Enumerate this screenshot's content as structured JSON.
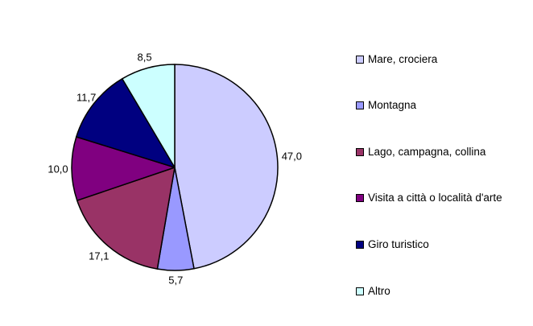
{
  "chart_data": {
    "type": "pie",
    "title": "",
    "categories": [
      "Mare, crociera",
      "Montagna",
      "Lago, campagna, collina",
      "Visita a città o località d'arte",
      "Giro turistico",
      "Altro"
    ],
    "values": [
      47.0,
      5.7,
      17.1,
      10.0,
      11.7,
      8.5
    ],
    "value_labels": [
      "47,0",
      "5,7",
      "17,1",
      "10,0",
      "11,7",
      "8,5"
    ],
    "colors": [
      "#ccccff",
      "#9999ff",
      "#993366",
      "#800080",
      "#000080",
      "#ccffff"
    ],
    "start_angle_deg": 0,
    "direction": "clockwise",
    "legend_position": "right"
  },
  "legend": {
    "items": [
      {
        "label": "Mare, crociera",
        "color": "#ccccff"
      },
      {
        "label": "Montagna",
        "color": "#9999ff"
      },
      {
        "label": "Lago, campagna, collina",
        "color": "#993366"
      },
      {
        "label": "Visita a città o località d'arte",
        "color": "#800080"
      },
      {
        "label": "Giro turistico",
        "color": "#000080"
      },
      {
        "label": "Altro",
        "color": "#ccffff"
      }
    ]
  },
  "data_labels": [
    "47,0",
    "5,7",
    "17,1",
    "10,0",
    "11,7",
    "8,5"
  ]
}
